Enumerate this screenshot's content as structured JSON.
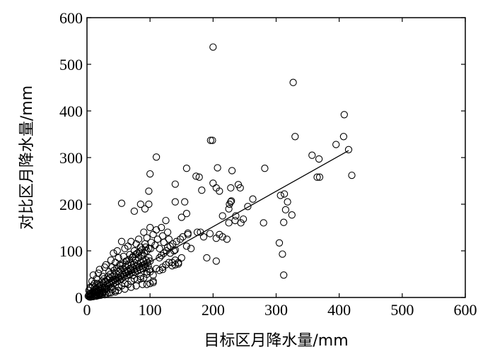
{
  "chart_data": {
    "type": "scatter",
    "xlabel": "目标区月降水量/mm",
    "ylabel": "对比区月降水量/mm",
    "xlim": [
      0,
      600
    ],
    "ylim": [
      0,
      600
    ],
    "xticks": [
      "0",
      "100",
      "200",
      "300",
      "400",
      "500",
      "600"
    ],
    "yticks": [
      "0",
      "100",
      "200",
      "300",
      "400",
      "500",
      "600"
    ],
    "grid": false,
    "marker": "open-circle",
    "trendline": {
      "x": [
        0,
        415
      ],
      "y": [
        0,
        315
      ]
    },
    "points": [
      [
        2,
        3
      ],
      [
        3,
        5
      ],
      [
        4,
        2
      ],
      [
        5,
        8
      ],
      [
        6,
        4
      ],
      [
        7,
        10
      ],
      [
        8,
        6
      ],
      [
        9,
        12
      ],
      [
        10,
        9
      ],
      [
        11,
        15
      ],
      [
        12,
        7
      ],
      [
        13,
        18
      ],
      [
        14,
        11
      ],
      [
        15,
        20
      ],
      [
        16,
        13
      ],
      [
        17,
        9
      ],
      [
        18,
        22
      ],
      [
        19,
        16
      ],
      [
        20,
        25
      ],
      [
        21,
        14
      ],
      [
        22,
        18
      ],
      [
        23,
        28
      ],
      [
        24,
        20
      ],
      [
        25,
        12
      ],
      [
        26,
        30
      ],
      [
        27,
        22
      ],
      [
        28,
        17
      ],
      [
        29,
        35
      ],
      [
        30,
        25
      ],
      [
        31,
        20
      ],
      [
        32,
        28
      ],
      [
        33,
        38
      ],
      [
        34,
        24
      ],
      [
        35,
        30
      ],
      [
        36,
        42
      ],
      [
        37,
        28
      ],
      [
        38,
        33
      ],
      [
        39,
        22
      ],
      [
        40,
        45
      ],
      [
        41,
        35
      ],
      [
        42,
        30
      ],
      [
        43,
        48
      ],
      [
        44,
        38
      ],
      [
        45,
        32
      ],
      [
        46,
        52
      ],
      [
        47,
        40
      ],
      [
        48,
        35
      ],
      [
        49,
        44
      ],
      [
        50,
        55
      ],
      [
        51,
        42
      ],
      [
        52,
        38
      ],
      [
        53,
        60
      ],
      [
        54,
        46
      ],
      [
        55,
        40
      ],
      [
        56,
        50
      ],
      [
        57,
        62
      ],
      [
        58,
        48
      ],
      [
        59,
        45
      ],
      [
        60,
        55
      ],
      [
        61,
        66
      ],
      [
        62,
        52
      ],
      [
        63,
        47
      ],
      [
        64,
        58
      ],
      [
        65,
        70
      ],
      [
        66,
        55
      ],
      [
        67,
        50
      ],
      [
        68,
        62
      ],
      [
        69,
        75
      ],
      [
        70,
        58
      ],
      [
        71,
        54
      ],
      [
        72,
        65
      ],
      [
        73,
        48
      ],
      [
        74,
        70
      ],
      [
        75,
        60
      ],
      [
        76,
        55
      ],
      [
        77,
        80
      ],
      [
        78,
        62
      ],
      [
        79,
        68
      ],
      [
        80,
        58
      ],
      [
        81,
        72
      ],
      [
        82,
        85
      ],
      [
        83,
        65
      ],
      [
        84,
        60
      ],
      [
        85,
        75
      ],
      [
        86,
        90
      ],
      [
        87,
        68
      ],
      [
        88,
        62
      ],
      [
        89,
        78
      ],
      [
        90,
        70
      ],
      [
        91,
        95
      ],
      [
        92,
        72
      ],
      [
        93,
        65
      ],
      [
        94,
        80
      ],
      [
        95,
        100
      ],
      [
        96,
        75
      ],
      [
        97,
        68
      ],
      [
        98,
        85
      ],
      [
        99,
        60
      ],
      [
        100,
        78
      ],
      [
        101,
        105
      ],
      [
        3,
        15
      ],
      [
        5,
        22
      ],
      [
        8,
        35
      ],
      [
        10,
        48
      ],
      [
        12,
        30
      ],
      [
        15,
        40
      ],
      [
        18,
        52
      ],
      [
        20,
        60
      ],
      [
        25,
        45
      ],
      [
        28,
        65
      ],
      [
        30,
        70
      ],
      [
        35,
        55
      ],
      [
        38,
        80
      ],
      [
        40,
        65
      ],
      [
        42,
        95
      ],
      [
        45,
        75
      ],
      [
        48,
        100
      ],
      [
        50,
        85
      ],
      [
        52,
        70
      ],
      [
        55,
        120
      ],
      [
        58,
        88
      ],
      [
        60,
        105
      ],
      [
        62,
        78
      ],
      [
        65,
        110
      ],
      [
        68,
        92
      ],
      [
        70,
        120
      ],
      [
        72,
        85
      ],
      [
        75,
        100
      ],
      [
        78,
        115
      ],
      [
        80,
        95
      ],
      [
        82,
        125
      ],
      [
        85,
        108
      ],
      [
        88,
        92
      ],
      [
        90,
        140
      ],
      [
        92,
        115
      ],
      [
        95,
        128
      ],
      [
        98,
        105
      ],
      [
        100,
        150
      ],
      [
        102,
        118
      ],
      [
        105,
        135
      ],
      [
        108,
        112
      ],
      [
        110,
        145
      ],
      [
        112,
        125
      ],
      [
        115,
        105
      ],
      [
        118,
        150
      ],
      [
        120,
        132
      ],
      [
        122,
        118
      ],
      [
        125,
        165
      ],
      [
        128,
        140
      ],
      [
        130,
        125
      ],
      [
        15,
        3
      ],
      [
        20,
        5
      ],
      [
        25,
        8
      ],
      [
        30,
        12
      ],
      [
        35,
        10
      ],
      [
        40,
        18
      ],
      [
        45,
        15
      ],
      [
        50,
        22
      ],
      [
        55,
        25
      ],
      [
        60,
        30
      ],
      [
        65,
        28
      ],
      [
        70,
        35
      ],
      [
        75,
        40
      ],
      [
        80,
        38
      ],
      [
        85,
        45
      ],
      [
        90,
        42
      ],
      [
        95,
        50
      ],
      [
        100,
        55
      ],
      [
        105,
        48
      ],
      [
        110,
        62
      ],
      [
        115,
        58
      ],
      [
        120,
        65
      ],
      [
        125,
        70
      ],
      [
        130,
        75
      ],
      [
        135,
        68
      ],
      [
        140,
        80
      ],
      [
        145,
        72
      ],
      [
        150,
        85
      ],
      [
        95,
        28
      ],
      [
        105,
        32
      ],
      [
        200,
        537
      ],
      [
        327,
        461
      ],
      [
        196,
        337
      ],
      [
        199,
        337
      ],
      [
        330,
        345
      ],
      [
        408,
        392
      ],
      [
        407,
        345
      ],
      [
        395,
        328
      ],
      [
        357,
        305
      ],
      [
        415,
        317
      ],
      [
        420,
        262
      ],
      [
        365,
        258
      ],
      [
        369,
        258
      ],
      [
        110,
        301
      ],
      [
        100,
        265
      ],
      [
        158,
        277
      ],
      [
        173,
        260
      ],
      [
        178,
        258
      ],
      [
        207,
        278
      ],
      [
        230,
        272
      ],
      [
        140,
        243
      ],
      [
        182,
        230
      ],
      [
        200,
        245
      ],
      [
        205,
        235
      ],
      [
        210,
        228
      ],
      [
        228,
        235
      ],
      [
        240,
        242
      ],
      [
        243,
        235
      ],
      [
        263,
        211
      ],
      [
        282,
        277
      ],
      [
        368,
        297
      ],
      [
        307,
        219
      ],
      [
        313,
        222
      ],
      [
        318,
        205
      ],
      [
        315,
        188
      ],
      [
        325,
        177
      ],
      [
        312,
        161
      ],
      [
        305,
        117
      ],
      [
        310,
        93
      ],
      [
        312,
        48
      ],
      [
        98,
        228
      ],
      [
        85,
        200
      ],
      [
        55,
        202
      ],
      [
        98,
        200
      ],
      [
        92,
        190
      ],
      [
        75,
        185
      ],
      [
        140,
        205
      ],
      [
        155,
        205
      ],
      [
        158,
        180
      ],
      [
        150,
        172
      ],
      [
        215,
        175
      ],
      [
        225,
        190
      ],
      [
        226,
        200
      ],
      [
        228,
        205
      ],
      [
        229,
        207
      ],
      [
        236,
        175
      ],
      [
        244,
        160
      ],
      [
        235,
        165
      ],
      [
        248,
        168
      ],
      [
        255,
        195
      ],
      [
        280,
        160
      ],
      [
        225,
        160
      ],
      [
        205,
        127
      ],
      [
        195,
        137
      ],
      [
        180,
        140
      ],
      [
        210,
        135
      ],
      [
        215,
        130
      ],
      [
        222,
        125
      ],
      [
        158,
        110
      ],
      [
        165,
        105
      ],
      [
        138,
        100
      ],
      [
        140,
        102
      ],
      [
        145,
        75
      ],
      [
        205,
        78
      ],
      [
        190,
        85
      ],
      [
        175,
        140
      ],
      [
        185,
        130
      ],
      [
        132,
        95
      ],
      [
        160,
        135
      ],
      [
        128,
        108
      ],
      [
        135,
        75
      ],
      [
        140,
        70
      ],
      [
        120,
        60
      ],
      [
        95,
        55
      ],
      [
        85,
        40
      ],
      [
        100,
        30
      ],
      [
        105,
        35
      ],
      [
        88,
        28
      ],
      [
        78,
        25
      ],
      [
        70,
        22
      ],
      [
        60,
        18
      ],
      [
        50,
        15
      ],
      [
        45,
        12
      ],
      [
        38,
        10
      ],
      [
        32,
        8
      ],
      [
        28,
        6
      ],
      [
        22,
        5
      ],
      [
        18,
        4
      ],
      [
        14,
        3
      ],
      [
        10,
        2
      ],
      [
        6,
        20
      ],
      [
        9,
        25
      ],
      [
        12,
        22
      ],
      [
        16,
        30
      ],
      [
        19,
        28
      ],
      [
        24,
        35
      ],
      [
        27,
        40
      ],
      [
        33,
        45
      ],
      [
        37,
        50
      ],
      [
        43,
        58
      ],
      [
        47,
        63
      ],
      [
        53,
        68
      ],
      [
        57,
        72
      ],
      [
        63,
        78
      ],
      [
        67,
        82
      ],
      [
        73,
        88
      ],
      [
        77,
        92
      ],
      [
        83,
        98
      ],
      [
        87,
        102
      ],
      [
        93,
        108
      ],
      [
        4,
        1
      ],
      [
        6,
        1
      ],
      [
        8,
        2
      ],
      [
        11,
        3
      ],
      [
        13,
        4
      ],
      [
        16,
        5
      ],
      [
        19,
        7
      ],
      [
        21,
        9
      ],
      [
        24,
        10
      ],
      [
        26,
        11
      ],
      [
        115,
        85
      ],
      [
        118,
        90
      ],
      [
        122,
        95
      ],
      [
        126,
        100
      ],
      [
        132,
        110
      ],
      [
        136,
        115
      ],
      [
        142,
        120
      ],
      [
        148,
        125
      ],
      [
        152,
        130
      ],
      [
        160,
        138
      ]
    ]
  }
}
